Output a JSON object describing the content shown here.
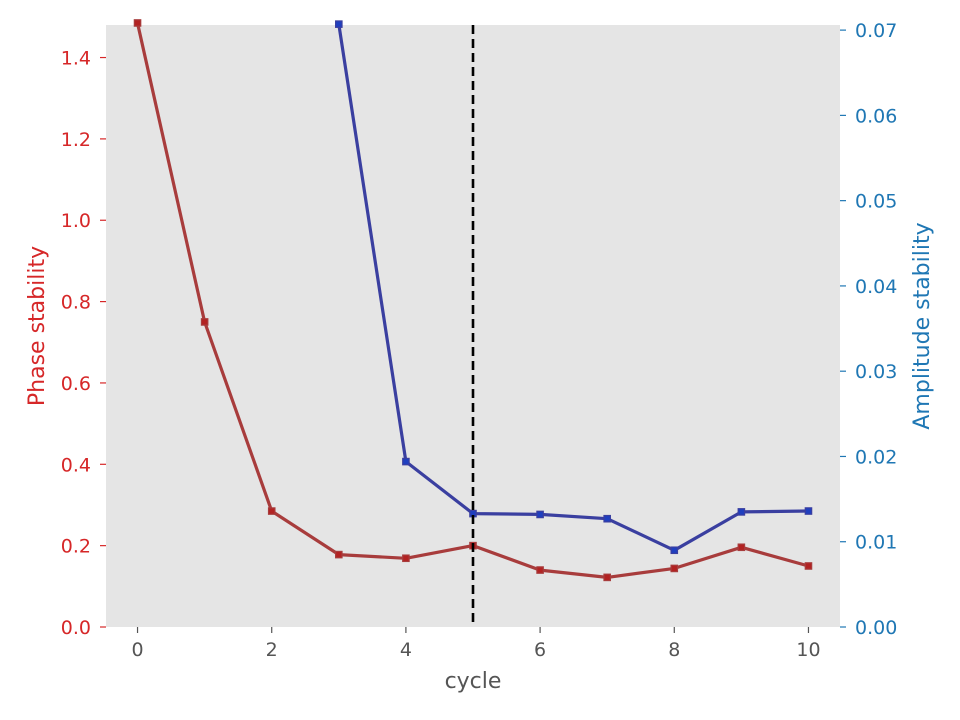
{
  "chart_data": {
    "type": "line",
    "title": "",
    "xlabel": "cycle",
    "ylabel_left": "Phase stability",
    "ylabel_right": "Amplitude stability",
    "xlim": [
      -0.47,
      10.47
    ],
    "ylim_left": [
      0,
      1.48
    ],
    "ylim_right": [
      0,
      0.0706
    ],
    "x_ticks": [
      "0",
      "2",
      "4",
      "6",
      "8",
      "10"
    ],
    "y_left_ticks": [
      "0.0",
      "0.2",
      "0.4",
      "0.6",
      "0.8",
      "1.0",
      "1.2",
      "1.4"
    ],
    "y_right_ticks": [
      "0.00",
      "0.01",
      "0.02",
      "0.03",
      "0.04",
      "0.05",
      "0.06",
      "0.07"
    ],
    "vline_x": 5,
    "grid": false,
    "background": "#e5e5e5",
    "series": [
      {
        "axis": "left",
        "color": "#a83c3c",
        "marker_color": "#b22222",
        "x": [
          0,
          1,
          2,
          3,
          4,
          5,
          6,
          7,
          8,
          9,
          10
        ],
        "values": [
          1.485,
          0.75,
          0.285,
          0.178,
          0.169,
          0.2,
          0.14,
          0.122,
          0.144,
          0.196,
          0.15
        ]
      },
      {
        "axis": "right",
        "color": "#3a3fa0",
        "marker_color": "#1f3fbf",
        "x": [
          3,
          4,
          5,
          6,
          7,
          8,
          9,
          10
        ],
        "values": [
          0.0707,
          0.0194,
          0.0133,
          0.0132,
          0.0127,
          0.009,
          0.0135,
          0.0136
        ]
      }
    ],
    "colors": {
      "left_axis": "#d62728",
      "right_axis": "#1f77b4",
      "x_axis": "#555555",
      "vline": "#000000"
    }
  }
}
